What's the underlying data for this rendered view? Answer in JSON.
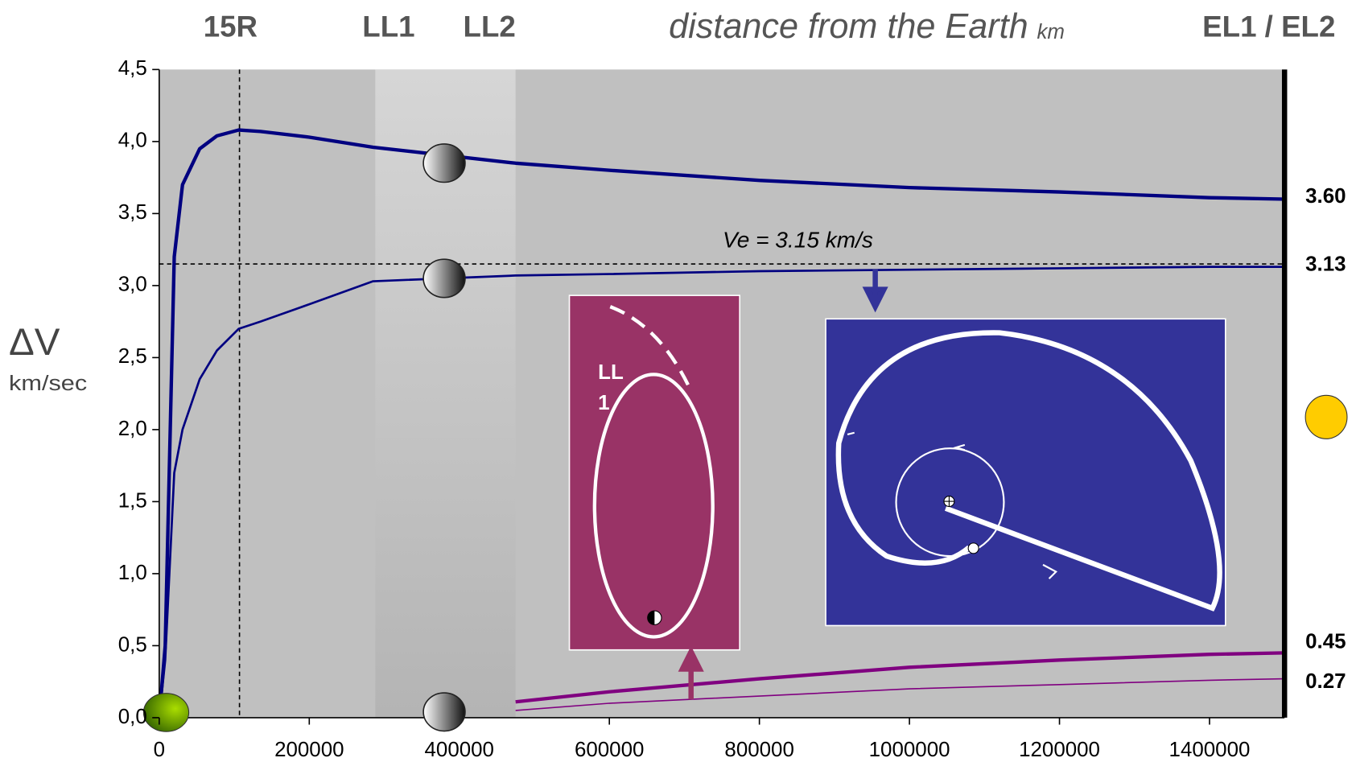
{
  "chart_data": {
    "type": "line",
    "y_label": "ΔV",
    "y_unit": "km/sec",
    "x_label": "distance from the Earth",
    "x_unit": "km",
    "top_labels": [
      "15R",
      "LL1",
      "LL2",
      "EL1 / EL2"
    ],
    "reference_line": {
      "value": 3.15,
      "label": "Ve = 3.15 km/s"
    },
    "marker_line_x": 107000,
    "band": [
      288000,
      475000
    ],
    "inset_label_lines": [
      "LL",
      "1"
    ],
    "x": [
      0,
      8000,
      20000,
      31000,
      54000,
      77000,
      106000,
      135000,
      200000,
      285000,
      475000,
      600000,
      800000,
      1000000,
      1200000,
      1400000,
      1500000
    ],
    "series": [
      {
        "name": "escape thick",
        "color": "#000080",
        "width": 4,
        "end_label": "3.60",
        "values": [
          0,
          0.5,
          3.2,
          3.7,
          3.95,
          4.04,
          4.08,
          4.07,
          4.03,
          3.96,
          3.85,
          3.8,
          3.73,
          3.68,
          3.65,
          3.61,
          3.6
        ]
      },
      {
        "name": "escape thin",
        "color": "#000080",
        "width": 2.5,
        "end_label": "3.13",
        "values": [
          0,
          0.4,
          1.7,
          2.0,
          2.35,
          2.55,
          2.7,
          2.75,
          2.87,
          3.03,
          3.07,
          3.08,
          3.1,
          3.11,
          3.12,
          3.13,
          3.13
        ]
      },
      {
        "name": "purple thick",
        "color": "#800080",
        "width": 4,
        "end_label": "0.45",
        "values": [
          null,
          null,
          null,
          null,
          null,
          null,
          null,
          null,
          null,
          null,
          0.11,
          0.18,
          0.27,
          0.35,
          0.4,
          0.44,
          0.45
        ]
      },
      {
        "name": "purple thin",
        "color": "#800080",
        "width": 1.5,
        "end_label": "0.27",
        "values": [
          null,
          null,
          null,
          null,
          null,
          null,
          null,
          null,
          null,
          null,
          0.05,
          0.1,
          0.15,
          0.2,
          0.23,
          0.26,
          0.27
        ]
      }
    ],
    "xlim": [
      0,
      1500000
    ],
    "xticks": [
      0,
      200000,
      400000,
      600000,
      800000,
      1000000,
      1200000,
      1400000
    ],
    "ylim": [
      0,
      4.5
    ],
    "yticks": [
      {
        "value": 0,
        "label": "0,0"
      },
      {
        "value": 0.5,
        "label": "0,5"
      },
      {
        "value": 1,
        "label": "1,0"
      },
      {
        "value": 1.5,
        "label": "1,5"
      },
      {
        "value": 2,
        "label": "2,0"
      },
      {
        "value": 2.5,
        "label": "2,5"
      },
      {
        "value": 3,
        "label": "3,0"
      },
      {
        "value": 3.5,
        "label": "3,5"
      },
      {
        "value": 4,
        "label": "4,0"
      },
      {
        "value": 4.5,
        "label": "4,5"
      }
    ]
  }
}
